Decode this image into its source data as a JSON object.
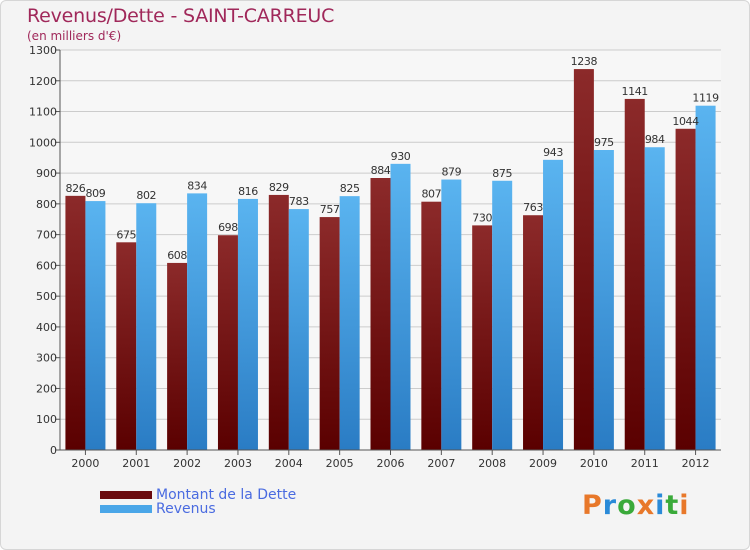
{
  "colors": {
    "series_debt": "#7a0f14",
    "series_revenue": "#4aa6e8",
    "title": "#a0285a",
    "grid": "#c8c8c8",
    "legend_text": "#4a6be0"
  },
  "logo": {
    "text": "Proxiti",
    "letter_colors": [
      "#e8782a",
      "#2a8ad8",
      "#3aaa3a",
      "#e8782a",
      "#2a8ad8",
      "#3aaa3a",
      "#e8782a"
    ]
  },
  "chart_data": {
    "type": "bar",
    "title": "Revenus/Dette - SAINT-CARREUC",
    "subtitle": "(en milliers d'€)",
    "categories": [
      "2000",
      "2001",
      "2002",
      "2003",
      "2004",
      "2005",
      "2006",
      "2007",
      "2008",
      "2009",
      "2010",
      "2011",
      "2012"
    ],
    "series": [
      {
        "name": "Montant de la Dette",
        "color": "#7a0f14",
        "values": [
          826,
          675,
          608,
          698,
          829,
          757,
          884,
          807,
          730,
          763,
          1238,
          1141,
          1044
        ]
      },
      {
        "name": "Revenus",
        "color": "#4aa6e8",
        "values": [
          809,
          802,
          834,
          816,
          783,
          825,
          930,
          879,
          875,
          943,
          975,
          984,
          1119
        ]
      }
    ],
    "ylim": [
      0,
      1300
    ],
    "yticks": [
      0,
      100,
      200,
      300,
      400,
      500,
      600,
      700,
      800,
      900,
      1000,
      1100,
      1200,
      1300
    ],
    "grid": true,
    "legend_position": "bottom-left"
  }
}
